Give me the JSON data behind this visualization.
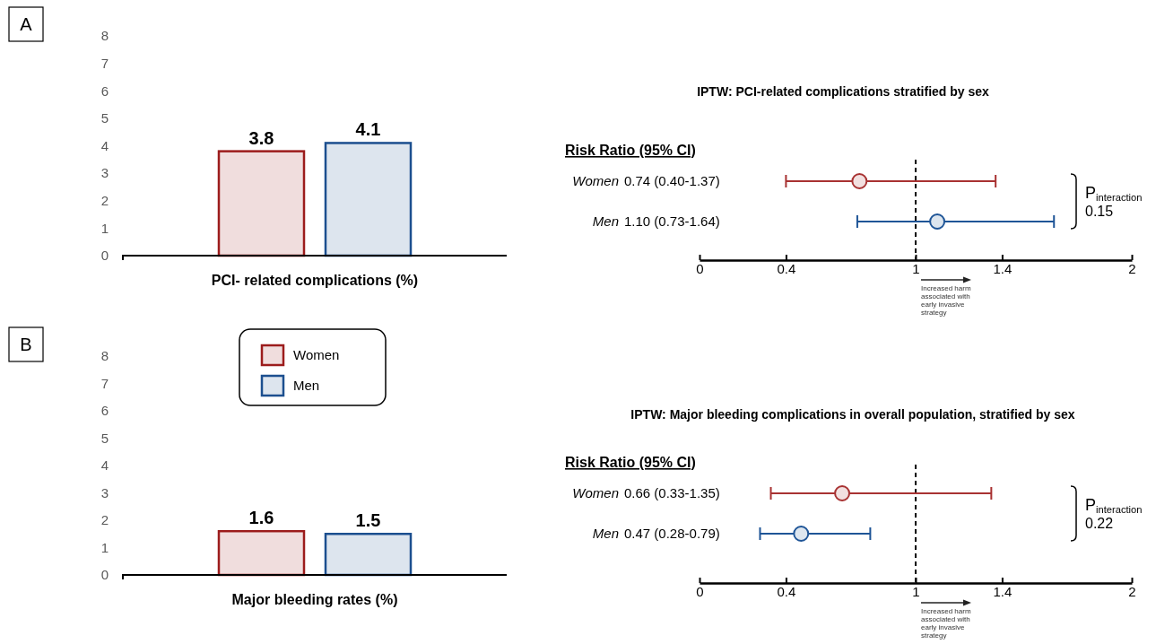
{
  "chart_data": [
    {
      "type": "bar",
      "xlabel": "PCI- related complications (%)",
      "categories": [
        null
      ],
      "series": [
        {
          "color": "#9c1c1c",
          "values": [
            3.8
          ]
        },
        {
          "color": "#1c4f8f",
          "values": [
            4.1
          ]
        }
      ],
      "ylim": [
        0,
        8
      ],
      "yticks": [
        0,
        1,
        2,
        3,
        4,
        5,
        6,
        7,
        8
      ],
      "data_labels": true,
      "annotations": [
        "A"
      ]
    },
    {
      "type": "scatter",
      "orientation": "horizontal",
      "title": "IPTW: PCI-related complications stratified by sex",
      "ylabel": "Risk Ratio (95% CI)",
      "categories": [
        "Women",
        "Men"
      ],
      "values": [
        0.74,
        1.1
      ],
      "errors": [
        [
          0.4,
          1.37
        ],
        [
          0.73,
          1.64
        ]
      ],
      "colors": [
        "#a83232",
        "#1f5597"
      ],
      "value_labels": [
        "0.74 (0.40-1.37)",
        "1.10 (0.73-1.64)"
      ],
      "marker": "circle",
      "xlim": [
        0,
        2
      ],
      "xticks": [
        0,
        0.4,
        1,
        1.4,
        2
      ],
      "ref_lines": [
        {
          "axis": "x",
          "value": 1,
          "line_style": "dashed"
        }
      ],
      "annotations": [
        "P$_{interaction}$",
        "0.15",
        "Increased harm associated with early invasive strategy"
      ]
    },
    {
      "type": "bar",
      "xlabel": "Major bleeding rates (%)",
      "categories": [
        null
      ],
      "series": [
        {
          "name": "Women",
          "color": "#9c1c1c",
          "values": [
            1.6
          ]
        },
        {
          "name": "Men",
          "color": "#1c4f8f",
          "values": [
            1.5
          ]
        }
      ],
      "ylim": [
        0,
        8
      ],
      "yticks": [
        0,
        1,
        2,
        3,
        4,
        5,
        6,
        7,
        8
      ],
      "data_labels": true,
      "legend": "top",
      "annotations": [
        "B"
      ]
    },
    {
      "type": "scatter",
      "orientation": "horizontal",
      "title": "IPTW: Major bleeding complications in overall population, stratified by sex",
      "ylabel": "Risk Ratio (95% CI)",
      "categories": [
        "Women",
        "Men"
      ],
      "values": [
        0.66,
        0.47
      ],
      "errors": [
        [
          0.33,
          1.35
        ],
        [
          0.28,
          0.79
        ]
      ],
      "colors": [
        "#a83232",
        "#1f5597"
      ],
      "value_labels": [
        "0.66 (0.33-1.35)",
        "0.47 (0.28-0.79)"
      ],
      "marker": "circle",
      "xlim": [
        0,
        2
      ],
      "xticks": [
        0,
        0.4,
        1,
        1.4,
        2
      ],
      "ref_lines": [
        {
          "axis": "x",
          "value": 1,
          "line_style": "dashed"
        }
      ],
      "annotations": [
        "P$_{interaction}$",
        "0.22",
        "Increased harm associated with early invasive strategy"
      ]
    }
  ]
}
